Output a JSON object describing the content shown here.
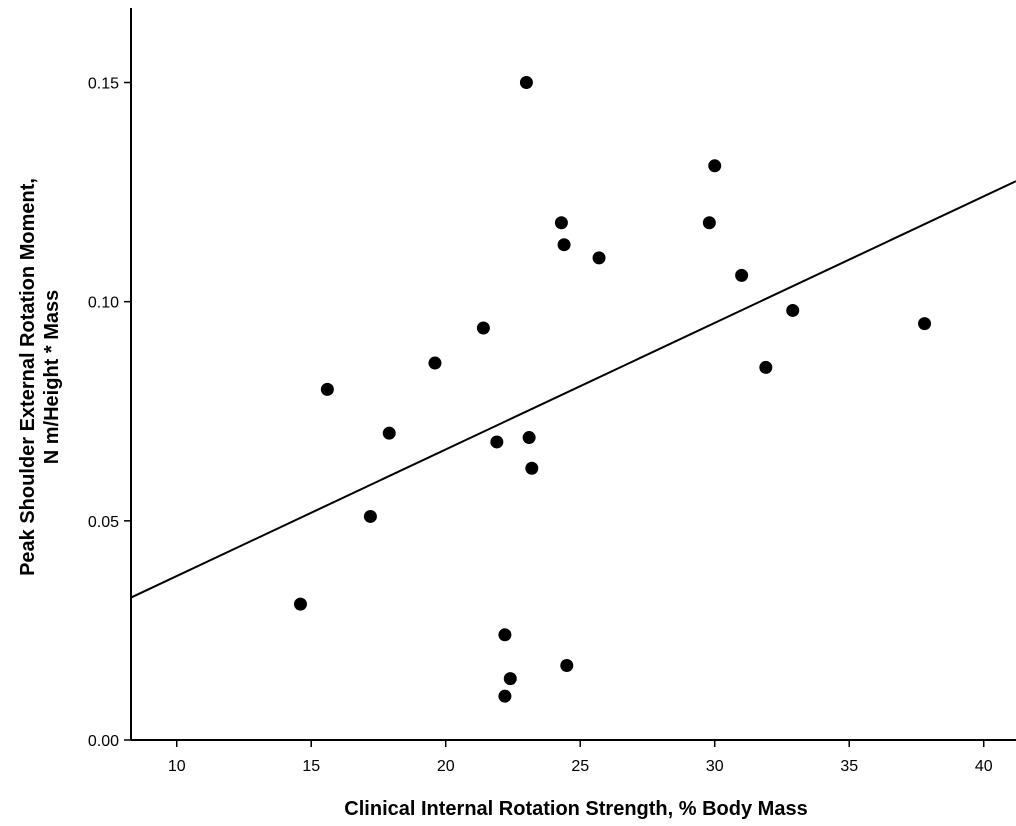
{
  "chart_data": {
    "type": "scatter",
    "xlabel": "Clinical Internal Rotation Strength, % Body Mass",
    "ylabel_line1": "Peak Shoulder External Rotation Moment,",
    "ylabel_line2": "N m/Height * Mass",
    "xlim": [
      8.3,
      41.2
    ],
    "ylim": [
      0,
      0.167
    ],
    "xticks": [
      10,
      15,
      20,
      25,
      30,
      35,
      40
    ],
    "xtick_labels": [
      "10",
      "15",
      "20",
      "25",
      "30",
      "35",
      "40"
    ],
    "yticks": [
      0.0,
      0.05,
      0.1,
      0.15
    ],
    "ytick_labels": [
      "0.00",
      "0.05",
      "0.10",
      "0.15"
    ],
    "grid": false,
    "legend": "none",
    "points": [
      {
        "x": 14.6,
        "y": 0.031
      },
      {
        "x": 15.6,
        "y": 0.08
      },
      {
        "x": 17.2,
        "y": 0.051
      },
      {
        "x": 17.9,
        "y": 0.07
      },
      {
        "x": 19.6,
        "y": 0.086
      },
      {
        "x": 21.4,
        "y": 0.094
      },
      {
        "x": 21.9,
        "y": 0.068
      },
      {
        "x": 22.2,
        "y": 0.024
      },
      {
        "x": 22.2,
        "y": 0.01
      },
      {
        "x": 22.4,
        "y": 0.014
      },
      {
        "x": 23.0,
        "y": 0.15
      },
      {
        "x": 23.1,
        "y": 0.069
      },
      {
        "x": 23.2,
        "y": 0.062
      },
      {
        "x": 24.3,
        "y": 0.118
      },
      {
        "x": 24.4,
        "y": 0.113
      },
      {
        "x": 24.5,
        "y": 0.017
      },
      {
        "x": 25.7,
        "y": 0.11
      },
      {
        "x": 29.8,
        "y": 0.118
      },
      {
        "x": 30.0,
        "y": 0.131
      },
      {
        "x": 31.0,
        "y": 0.106
      },
      {
        "x": 31.9,
        "y": 0.085
      },
      {
        "x": 32.9,
        "y": 0.098
      },
      {
        "x": 37.8,
        "y": 0.095
      }
    ],
    "fit_line": {
      "type": "linear",
      "x": [
        8.3,
        41.2
      ],
      "y": [
        0.0325,
        0.1275
      ]
    }
  }
}
